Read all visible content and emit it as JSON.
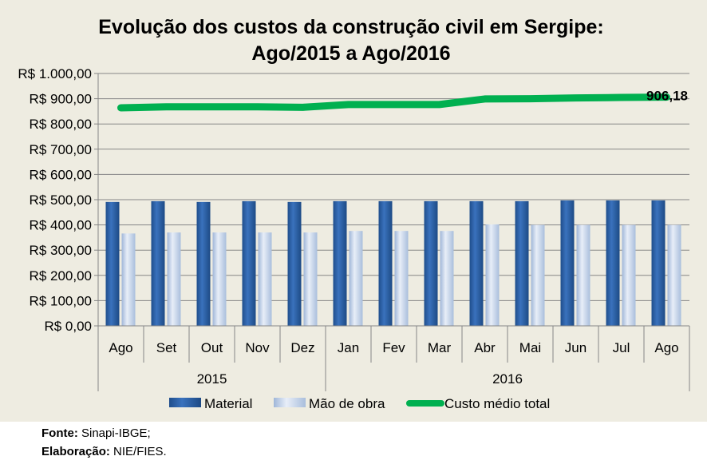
{
  "chart_data": {
    "type": "bar+line",
    "title_line1": "Evolução dos custos da construção civil em Sergipe:",
    "title_line2": "Ago/2015 a Ago/2016",
    "categories": [
      "Ago",
      "Set",
      "Out",
      "Nov",
      "Dez",
      "Jan",
      "Fev",
      "Mar",
      "Abr",
      "Mai",
      "Jun",
      "Jul",
      "Ago"
    ],
    "groups": [
      {
        "label": "2015",
        "span": 5
      },
      {
        "label": "2016",
        "span": 8
      }
    ],
    "yticks": [
      "R$ 0,00",
      "R$ 100,00",
      "R$ 200,00",
      "R$ 300,00",
      "R$ 400,00",
      "R$ 500,00",
      "R$ 600,00",
      "R$ 700,00",
      "R$ 800,00",
      "R$ 900,00",
      "R$ 1.000,00"
    ],
    "ylim": [
      0,
      1000
    ],
    "series": [
      {
        "name": "Material",
        "type": "bar",
        "color": "#2e63a8",
        "values": [
          491,
          494,
          491,
          494,
          491,
          494,
          494,
          494,
          494,
          494,
          497,
          497,
          497
        ]
      },
      {
        "name": "Mão de obra",
        "type": "bar",
        "color": "#c6d6ee",
        "values": [
          366,
          370,
          370,
          370,
          370,
          376,
          376,
          376,
          402,
          400,
          400,
          400,
          400
        ]
      },
      {
        "name": "Custo médio total",
        "type": "line",
        "color": "#00b050",
        "values": [
          864,
          868,
          868,
          868,
          866,
          877,
          877,
          877,
          899,
          900,
          903,
          905,
          906.18
        ]
      }
    ],
    "annotation": "906,18",
    "legend_position": "bottom"
  },
  "footer": {
    "fonte_label": "Fonte:",
    "fonte_value": " Sinapi-IBGE;",
    "elab_label": "Elaboração:",
    "elab_value": "  NIE/FIES."
  }
}
